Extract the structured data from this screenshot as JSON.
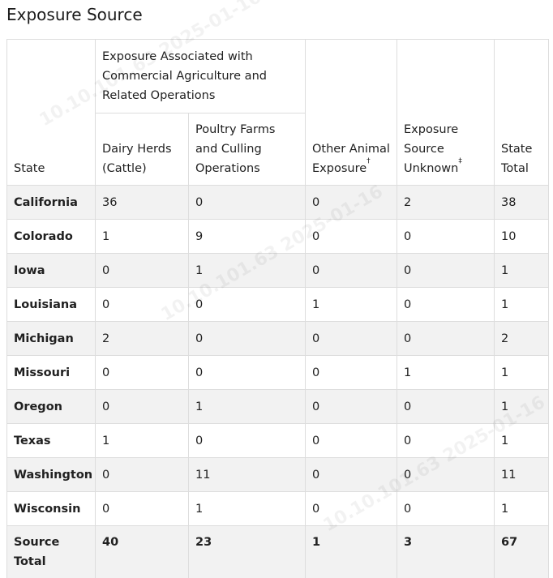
{
  "title": "Exposure Source",
  "headers": {
    "state": "State",
    "group": "Exposure Associated with Commercial Agriculture and Related Operations",
    "dairy": "Dairy Herds (Cattle)",
    "poultry": "Poultry Farms and Culling Operations",
    "other": "Other Animal Exposure",
    "other_mark": "†",
    "unknown": "Exposure Source Unknown",
    "unknown_mark": "‡",
    "total": "State Total"
  },
  "rows": [
    {
      "state": "California",
      "dairy": "36",
      "poultry": "0",
      "other": "0",
      "unknown": "2",
      "total": "38"
    },
    {
      "state": "Colorado",
      "dairy": "1",
      "poultry": "9",
      "other": "0",
      "unknown": "0",
      "total": "10"
    },
    {
      "state": "Iowa",
      "dairy": "0",
      "poultry": "1",
      "other": "0",
      "unknown": "0",
      "total": "1"
    },
    {
      "state": "Louisiana",
      "dairy": "0",
      "poultry": "0",
      "other": "1",
      "unknown": "0",
      "total": "1"
    },
    {
      "state": "Michigan",
      "dairy": "2",
      "poultry": "0",
      "other": "0",
      "unknown": "0",
      "total": "2"
    },
    {
      "state": "Missouri",
      "dairy": "0",
      "poultry": "0",
      "other": "0",
      "unknown": "1",
      "total": "1"
    },
    {
      "state": "Oregon",
      "dairy": "0",
      "poultry": "1",
      "other": "0",
      "unknown": "0",
      "total": "1"
    },
    {
      "state": "Texas",
      "dairy": "1",
      "poultry": "0",
      "other": "0",
      "unknown": "0",
      "total": "1"
    },
    {
      "state": "Washington",
      "dairy": "0",
      "poultry": "11",
      "other": "0",
      "unknown": "0",
      "total": "11"
    },
    {
      "state": "Wisconsin",
      "dairy": "0",
      "poultry": "1",
      "other": "0",
      "unknown": "0",
      "total": "1"
    }
  ],
  "totals": {
    "label": "Source Total",
    "dairy": "40",
    "poultry": "23",
    "other": "1",
    "unknown": "3",
    "total": "67"
  },
  "watermark": "10.10.101.63 2025-01-16",
  "colors": {
    "stripe": "#f2f2f2",
    "border": "#dddddd",
    "text": "#212121"
  }
}
